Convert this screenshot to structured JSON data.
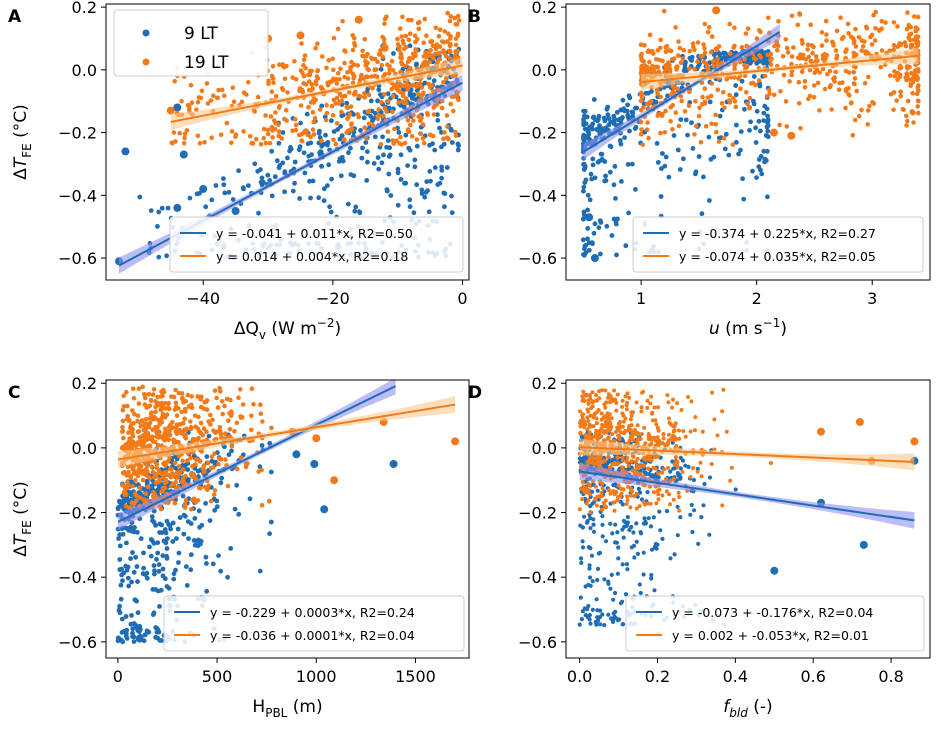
{
  "colors": {
    "blue": "#1f6db5",
    "orange": "#f47a18",
    "band_blue": "#8f8ff0",
    "band_orange": "#f9c98f"
  },
  "legend_series": [
    {
      "label": "9 LT",
      "color": "#1f6db5"
    },
    {
      "label": "19 LT",
      "color": "#f47a18"
    }
  ],
  "chart_data": [
    {
      "panel": "A",
      "type": "scatter",
      "xlabel_main": "ΔQ",
      "xlabel_sub": "v",
      "xlabel_unit_base": " (W m",
      "xlabel_unit_sup": "−2",
      "xlabel_unit_end": ")",
      "ylabel_main": "ΔT",
      "ylabel_sub": "FE",
      "ylabel_unit": " (°C)",
      "xlim": [
        -55,
        1
      ],
      "ylim": [
        -0.67,
        0.21
      ],
      "xticks": [
        -40,
        -20,
        0
      ],
      "xticklabels": [
        "−40",
        "−20",
        "0"
      ],
      "yticks": [
        -0.6,
        -0.4,
        -0.2,
        0.0,
        0.2
      ],
      "yticklabels": [
        "−0.6",
        "−0.4",
        "−0.2",
        "0.0",
        "0.2"
      ],
      "fits": [
        {
          "series": "9 LT",
          "intercept": -0.041,
          "slope": 0.011,
          "x_range": [
            -53,
            0
          ],
          "label": "y = -0.041 + 0.011*x, R2=0.50"
        },
        {
          "series": "19 LT",
          "intercept": 0.014,
          "slope": 0.004,
          "x_range": [
            -45,
            0
          ],
          "label": "y = 0.014 + 0.004*x, R2=0.18"
        }
      ],
      "gen": {
        "blue": {
          "xdist": "neg",
          "xmin": -50,
          "xmax": 0,
          "x_mode": -4,
          "noise_lo": 0.3,
          "noise_hi": 0.08,
          "ymin": -0.6,
          "ymax": 0.08
        },
        "orange": {
          "xdist": "neg",
          "xmin": -45,
          "xmax": 0,
          "x_mode": -2,
          "noise_lo": 0.12,
          "noise_hi": 0.09,
          "ymin": -0.24,
          "ymax": 0.19
        }
      },
      "outliers": {
        "blue": [
          [
            -53,
            -0.61
          ],
          [
            -52,
            -0.26
          ],
          [
            -44,
            -0.12
          ],
          [
            -43,
            -0.27
          ],
          [
            -40,
            -0.38
          ],
          [
            -35,
            -0.45
          ],
          [
            -44,
            -0.44
          ]
        ],
        "orange": [
          [
            -30,
            0.1
          ],
          [
            -25,
            0.11
          ],
          [
            -16,
            0.16
          ],
          [
            -12,
            0.07
          ],
          [
            -45,
            -0.13
          ]
        ]
      }
    },
    {
      "panel": "B",
      "type": "scatter",
      "xlabel_main": "u",
      "xlabel_sub": "",
      "xlabel_unit_base": " (m s",
      "xlabel_unit_sup": "−1",
      "xlabel_unit_end": ")",
      "ylabel_main": "",
      "ylabel_sub": "",
      "ylabel_unit": "",
      "xlim": [
        0.35,
        3.5
      ],
      "ylim": [
        -0.67,
        0.21
      ],
      "xticks": [
        1,
        2,
        3
      ],
      "xticklabels": [
        "1",
        "2",
        "3"
      ],
      "yticks": [
        -0.6,
        -0.4,
        -0.2,
        0.0,
        0.2
      ],
      "yticklabels": [
        "−0.6",
        "−0.4",
        "−0.2",
        "0.0",
        "0.2"
      ],
      "fits": [
        {
          "series": "9 LT",
          "intercept": -0.374,
          "slope": 0.225,
          "x_range": [
            0.5,
            2.2
          ],
          "label": "y = -0.374 + 0.225*x, R2=0.27"
        },
        {
          "series": "19 LT",
          "intercept": -0.074,
          "slope": 0.035,
          "x_range": [
            1.0,
            3.4
          ],
          "label": "y = -0.074 + 0.035*x, R2=0.05"
        }
      ],
      "gen": {
        "blue": {
          "xdist": "uni",
          "xmin": 0.5,
          "xmax": 2.1,
          "noise_lo": 0.28,
          "noise_hi": 0.06,
          "ymin": -0.6,
          "ymax": 0.06
        },
        "orange": {
          "xdist": "uni",
          "xmin": 1.0,
          "xmax": 3.4,
          "noise_lo": 0.1,
          "noise_hi": 0.07,
          "ymin": -0.24,
          "ymax": 0.19
        }
      },
      "outliers": {
        "blue": [
          [
            0.6,
            -0.6
          ],
          [
            0.55,
            -0.47
          ]
        ],
        "orange": [
          [
            1.65,
            0.19
          ],
          [
            2.15,
            -0.2
          ],
          [
            2.3,
            -0.21
          ]
        ]
      }
    },
    {
      "panel": "C",
      "type": "scatter",
      "xlabel_main": "H",
      "xlabel_sub": "PBL",
      "xlabel_unit_base": " (m)",
      "xlabel_unit_sup": "",
      "xlabel_unit_end": "",
      "ylabel_main": "ΔT",
      "ylabel_sub": "FE",
      "ylabel_unit": " (°C)",
      "xlim": [
        -60,
        1770
      ],
      "ylim": [
        -0.65,
        0.21
      ],
      "xticks": [
        0,
        500,
        1000,
        1500
      ],
      "xticklabels": [
        "0",
        "500",
        "1000",
        "1500"
      ],
      "yticks": [
        -0.6,
        -0.4,
        -0.2,
        0.0,
        0.2
      ],
      "yticklabels": [
        "−0.6",
        "−0.4",
        "−0.2",
        "0.0",
        "0.2"
      ],
      "fits": [
        {
          "series": "9 LT",
          "intercept": -0.229,
          "slope": 0.0003,
          "x_range": [
            0,
            1400
          ],
          "label": "y = -0.229 + 0.0003*x, R2=0.24"
        },
        {
          "series": "19 LT",
          "intercept": -0.036,
          "slope": 0.0001,
          "x_range": [
            0,
            1700
          ],
          "label": "y = -0.036 + 0.0001*x, R2=0.04"
        }
      ],
      "gen": {
        "blue": {
          "xdist": "pos",
          "xmin": 0,
          "xmax": 800,
          "x_mode": 300,
          "noise_lo": 0.28,
          "noise_hi": 0.06,
          "ymin": -0.6,
          "ymax": 0.05
        },
        "orange": {
          "xdist": "pos",
          "xmin": 20,
          "xmax": 800,
          "x_mode": 350,
          "noise_lo": 0.1,
          "noise_hi": 0.1,
          "ymin": -0.19,
          "ymax": 0.19
        }
      },
      "outliers": {
        "blue": [
          [
            1040,
            -0.19
          ],
          [
            1390,
            -0.05
          ],
          [
            990,
            -0.05
          ],
          [
            900,
            -0.02
          ],
          [
            110,
            -0.59
          ]
        ],
        "orange": [
          [
            1700,
            0.02
          ],
          [
            1340,
            0.08
          ],
          [
            1090,
            -0.1
          ],
          [
            1000,
            0.03
          ],
          [
            880,
            0.05
          ]
        ]
      }
    },
    {
      "panel": "D",
      "type": "scatter",
      "xlabel_main": "f",
      "xlabel_sub": "bld",
      "xlabel_unit_base": " (-)",
      "xlabel_unit_sup": "",
      "xlabel_unit_end": "",
      "ylabel_main": "",
      "ylabel_sub": "",
      "ylabel_unit": "",
      "xlim": [
        -0.035,
        0.9
      ],
      "ylim": [
        -0.65,
        0.21
      ],
      "xticks": [
        0.0,
        0.2,
        0.4,
        0.6,
        0.8
      ],
      "xticklabels": [
        "0.0",
        "0.2",
        "0.4",
        "0.6",
        "0.8"
      ],
      "yticks": [
        -0.6,
        -0.4,
        -0.2,
        0.0,
        0.2
      ],
      "yticklabels": [
        "−0.6",
        "−0.4",
        "−0.2",
        "0.0",
        "0.2"
      ],
      "fits": [
        {
          "series": "9 LT",
          "intercept": -0.073,
          "slope": -0.176,
          "x_range": [
            0,
            0.86
          ],
          "label": "y = -0.073 + -0.176*x, R2=0.04"
        },
        {
          "series": "19 LT",
          "intercept": 0.002,
          "slope": -0.053,
          "x_range": [
            0,
            0.86
          ],
          "label": "y = 0.002 + -0.053*x, R2=0.01"
        }
      ],
      "gen": {
        "blue": {
          "xdist": "pos",
          "xmin": 0,
          "xmax": 0.5,
          "x_mode": 0.15,
          "noise_lo": 0.3,
          "noise_hi": 0.06,
          "ymin": -0.55,
          "ymax": 0.05
        },
        "orange": {
          "xdist": "pos",
          "xmin": 0,
          "xmax": 0.6,
          "x_mode": 0.15,
          "noise_lo": 0.1,
          "noise_hi": 0.1,
          "ymin": -0.2,
          "ymax": 0.18
        }
      },
      "outliers": {
        "blue": [
          [
            0.73,
            -0.3
          ],
          [
            0.86,
            -0.04
          ],
          [
            0.62,
            -0.17
          ],
          [
            0.5,
            -0.38
          ]
        ],
        "orange": [
          [
            0.86,
            0.02
          ],
          [
            0.72,
            0.08
          ],
          [
            0.75,
            -0.04
          ],
          [
            0.62,
            0.05
          ]
        ]
      }
    }
  ]
}
